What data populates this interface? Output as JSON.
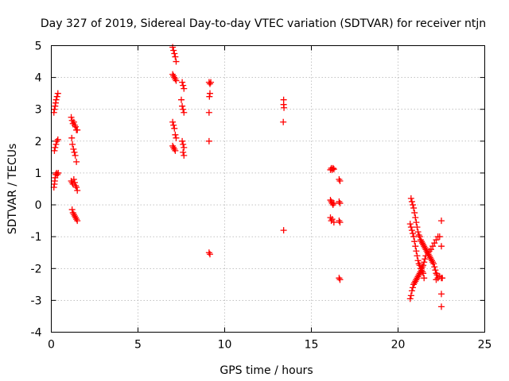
{
  "chart_data": {
    "type": "scatter",
    "title": "Day 327 of 2019, Sidereal Day-to-day VTEC variation (SDTVAR) for receiver ntjn",
    "xlabel": "GPS time / hours",
    "ylabel": "SDTVAR / TECUs",
    "xlim": [
      0,
      25
    ],
    "ylim": [
      -4,
      5
    ],
    "xticks": [
      0,
      5,
      10,
      15,
      20,
      25
    ],
    "yticks": [
      -4,
      -3,
      -2,
      -1,
      0,
      1,
      2,
      3,
      4,
      5
    ],
    "grid": true,
    "marker": "plus",
    "color": "#ff0000",
    "series": [
      {
        "name": "SDTVAR",
        "points": [
          [
            0.15,
            2.9
          ],
          [
            0.18,
            3.0
          ],
          [
            0.22,
            3.1
          ],
          [
            0.25,
            3.2
          ],
          [
            0.28,
            3.3
          ],
          [
            0.33,
            3.4
          ],
          [
            0.38,
            3.5
          ],
          [
            0.18,
            1.7
          ],
          [
            0.22,
            1.8
          ],
          [
            0.27,
            1.9
          ],
          [
            0.32,
            2.0
          ],
          [
            0.38,
            2.05
          ],
          [
            0.15,
            0.55
          ],
          [
            0.18,
            0.65
          ],
          [
            0.2,
            0.75
          ],
          [
            0.22,
            0.85
          ],
          [
            0.25,
            0.95
          ],
          [
            0.3,
            1.0
          ],
          [
            0.35,
            0.95
          ],
          [
            0.4,
            1.0
          ],
          [
            1.15,
            2.75
          ],
          [
            1.2,
            2.65
          ],
          [
            1.25,
            2.55
          ],
          [
            1.3,
            2.6
          ],
          [
            1.35,
            2.5
          ],
          [
            1.4,
            2.45
          ],
          [
            1.45,
            2.35
          ],
          [
            1.5,
            2.35
          ],
          [
            1.18,
            2.1
          ],
          [
            1.22,
            1.9
          ],
          [
            1.28,
            1.75
          ],
          [
            1.33,
            1.65
          ],
          [
            1.38,
            1.55
          ],
          [
            1.45,
            1.35
          ],
          [
            1.15,
            0.75
          ],
          [
            1.2,
            0.7
          ],
          [
            1.25,
            0.65
          ],
          [
            1.3,
            0.8
          ],
          [
            1.35,
            0.7
          ],
          [
            1.4,
            0.6
          ],
          [
            1.45,
            0.55
          ],
          [
            1.5,
            0.45
          ],
          [
            1.2,
            -0.15
          ],
          [
            1.25,
            -0.25
          ],
          [
            1.3,
            -0.3
          ],
          [
            1.35,
            -0.35
          ],
          [
            1.4,
            -0.4
          ],
          [
            1.45,
            -0.45
          ],
          [
            1.5,
            -0.5
          ],
          [
            7.0,
            4.95
          ],
          [
            7.05,
            4.85
          ],
          [
            7.1,
            4.75
          ],
          [
            7.15,
            4.65
          ],
          [
            7.2,
            4.5
          ],
          [
            7.0,
            4.1
          ],
          [
            7.05,
            4.05
          ],
          [
            7.1,
            4.0
          ],
          [
            7.15,
            3.95
          ],
          [
            7.2,
            3.9
          ],
          [
            7.55,
            3.85
          ],
          [
            7.6,
            3.75
          ],
          [
            7.65,
            3.65
          ],
          [
            7.5,
            3.3
          ],
          [
            7.55,
            3.1
          ],
          [
            7.6,
            3.0
          ],
          [
            7.65,
            2.9
          ],
          [
            7.0,
            2.6
          ],
          [
            7.05,
            2.5
          ],
          [
            7.1,
            2.4
          ],
          [
            7.15,
            2.2
          ],
          [
            7.2,
            2.1
          ],
          [
            7.0,
            1.85
          ],
          [
            7.05,
            1.8
          ],
          [
            7.1,
            1.75
          ],
          [
            7.15,
            1.7
          ],
          [
            7.55,
            2.0
          ],
          [
            7.6,
            1.9
          ],
          [
            7.65,
            1.8
          ],
          [
            7.6,
            1.65
          ],
          [
            7.65,
            1.55
          ],
          [
            9.1,
            3.85
          ],
          [
            9.15,
            3.8
          ],
          [
            9.2,
            3.85
          ],
          [
            9.15,
            3.5
          ],
          [
            9.12,
            3.4
          ],
          [
            9.1,
            2.9
          ],
          [
            9.1,
            2.0
          ],
          [
            9.1,
            -1.5
          ],
          [
            9.15,
            -1.55
          ],
          [
            13.4,
            3.3
          ],
          [
            13.4,
            3.15
          ],
          [
            13.42,
            3.05
          ],
          [
            13.38,
            2.6
          ],
          [
            13.4,
            -0.8
          ],
          [
            16.1,
            1.1
          ],
          [
            16.15,
            1.15
          ],
          [
            16.2,
            1.1
          ],
          [
            16.25,
            1.15
          ],
          [
            16.3,
            1.12
          ],
          [
            16.1,
            0.15
          ],
          [
            16.15,
            0.1
          ],
          [
            16.2,
            0.05
          ],
          [
            16.25,
            0.0
          ],
          [
            16.3,
            0.05
          ],
          [
            16.1,
            -0.4
          ],
          [
            16.15,
            -0.5
          ],
          [
            16.2,
            -0.45
          ],
          [
            16.3,
            -0.55
          ],
          [
            16.6,
            0.8
          ],
          [
            16.65,
            0.75
          ],
          [
            16.6,
            0.1
          ],
          [
            16.65,
            0.05
          ],
          [
            16.6,
            -0.5
          ],
          [
            16.65,
            -0.55
          ],
          [
            16.6,
            -2.3
          ],
          [
            16.65,
            -2.35
          ],
          [
            20.75,
            0.2
          ],
          [
            20.8,
            0.1
          ],
          [
            20.85,
            0.0
          ],
          [
            20.9,
            -0.1
          ],
          [
            20.95,
            -0.25
          ],
          [
            21.0,
            -0.4
          ],
          [
            21.05,
            -0.55
          ],
          [
            21.1,
            -0.7
          ],
          [
            21.15,
            -0.85
          ],
          [
            21.2,
            -0.95
          ],
          [
            21.25,
            -1.0
          ],
          [
            21.3,
            -1.1
          ],
          [
            21.35,
            -1.15
          ],
          [
            21.4,
            -1.2
          ],
          [
            21.45,
            -1.25
          ],
          [
            21.5,
            -1.3
          ],
          [
            21.55,
            -1.35
          ],
          [
            21.6,
            -1.4
          ],
          [
            21.65,
            -1.45
          ],
          [
            21.7,
            -1.5
          ],
          [
            21.75,
            -1.55
          ],
          [
            21.8,
            -1.6
          ],
          [
            21.85,
            -1.65
          ],
          [
            21.9,
            -1.7
          ],
          [
            21.95,
            -1.75
          ],
          [
            22.0,
            -1.8
          ],
          [
            22.05,
            -1.85
          ],
          [
            22.1,
            -1.95
          ],
          [
            22.15,
            -2.05
          ],
          [
            22.2,
            -2.15
          ],
          [
            22.25,
            -2.2
          ],
          [
            22.3,
            -2.3
          ],
          [
            20.7,
            -0.6
          ],
          [
            20.75,
            -0.7
          ],
          [
            20.8,
            -0.8
          ],
          [
            20.85,
            -0.9
          ],
          [
            20.9,
            -1.0
          ],
          [
            20.95,
            -1.15
          ],
          [
            21.0,
            -1.3
          ],
          [
            21.05,
            -1.45
          ],
          [
            21.1,
            -1.6
          ],
          [
            21.15,
            -1.75
          ],
          [
            21.2,
            -1.85
          ],
          [
            21.25,
            -1.9
          ],
          [
            21.3,
            -2.0
          ],
          [
            21.35,
            -2.05
          ],
          [
            21.4,
            -2.1
          ],
          [
            21.45,
            -2.15
          ],
          [
            21.5,
            -2.3
          ],
          [
            20.7,
            -2.95
          ],
          [
            20.75,
            -2.85
          ],
          [
            20.8,
            -2.7
          ],
          [
            20.85,
            -2.6
          ],
          [
            20.9,
            -2.5
          ],
          [
            20.95,
            -2.45
          ],
          [
            21.0,
            -2.4
          ],
          [
            21.05,
            -2.35
          ],
          [
            21.1,
            -2.3
          ],
          [
            21.15,
            -2.25
          ],
          [
            21.2,
            -2.2
          ],
          [
            21.25,
            -2.15
          ],
          [
            21.3,
            -2.1
          ],
          [
            21.35,
            -2.0
          ],
          [
            21.4,
            -1.95
          ],
          [
            21.45,
            -1.9
          ],
          [
            21.5,
            -1.8
          ],
          [
            21.55,
            -1.7
          ],
          [
            21.6,
            -1.6
          ],
          [
            21.7,
            -1.5
          ],
          [
            21.8,
            -1.45
          ],
          [
            21.9,
            -1.4
          ],
          [
            22.0,
            -1.3
          ],
          [
            22.1,
            -1.2
          ],
          [
            22.2,
            -1.1
          ],
          [
            22.3,
            -1.0
          ],
          [
            22.4,
            -1.0
          ],
          [
            22.2,
            -2.35
          ],
          [
            22.3,
            -2.3
          ],
          [
            22.4,
            -2.25
          ],
          [
            22.5,
            -2.3
          ],
          [
            22.55,
            -2.3
          ],
          [
            22.5,
            -0.5
          ],
          [
            22.5,
            -1.3
          ],
          [
            22.5,
            -2.8
          ],
          [
            22.5,
            -3.2
          ]
        ]
      }
    ]
  }
}
